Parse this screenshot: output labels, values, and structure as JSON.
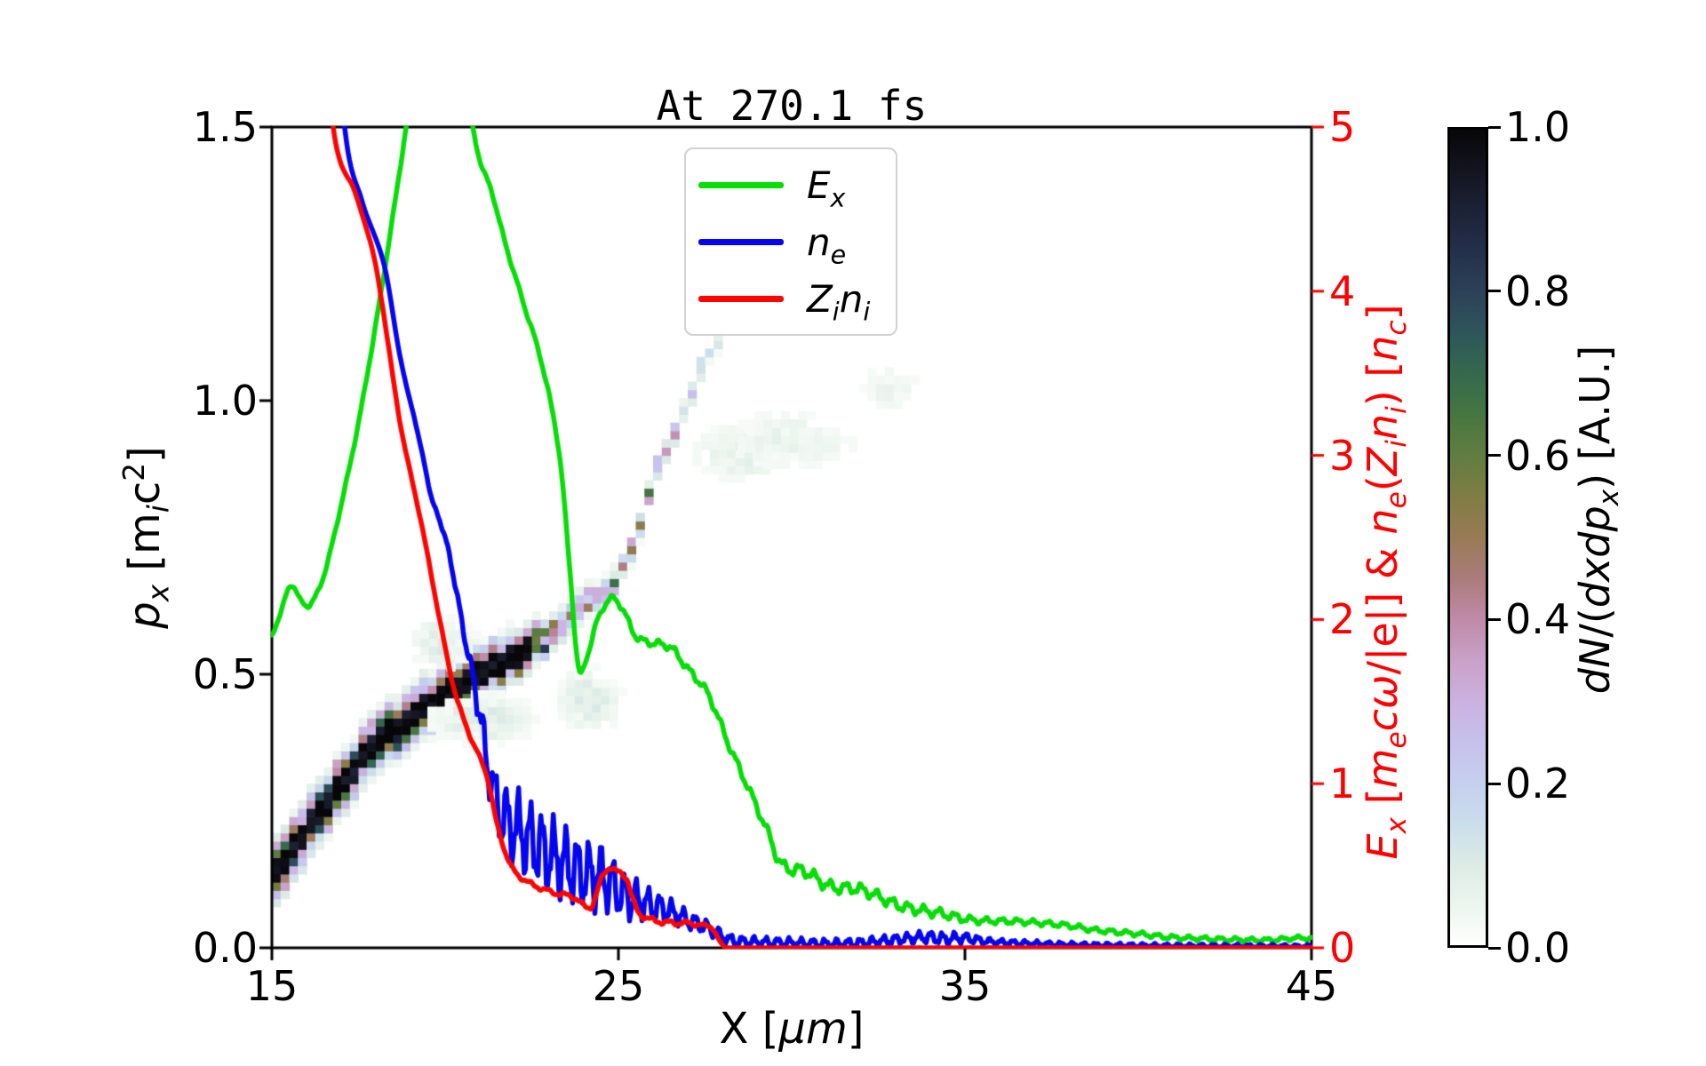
{
  "title": "At 270.1 fs",
  "colors": {
    "green": "#07dd07",
    "blue": "#0505f0",
    "red": "#fd0400",
    "right_axis": "#ff0000",
    "spine": "#000000",
    "legend_border": "#d2d2d2",
    "background": "#ffffff"
  },
  "axes": {
    "x": {
      "label": "X [*μm*]",
      "range": [
        15,
        45
      ],
      "ticks": [
        {
          "label": "15",
          "v": 15
        },
        {
          "label": "25",
          "v": 25
        },
        {
          "label": "35",
          "v": 35
        },
        {
          "label": "45",
          "v": 45
        }
      ]
    },
    "y_left": {
      "label": "*p*_{*x*} [m_{*i*}c^{2}]",
      "range": [
        0,
        1.5
      ],
      "ticks": [
        {
          "label": "0.0",
          "v": 0.0
        },
        {
          "label": "0.5",
          "v": 0.5
        },
        {
          "label": "1.0",
          "v": 1.0
        },
        {
          "label": "1.5",
          "v": 1.5
        }
      ]
    },
    "y_right": {
      "label": "*E*_{*x*} [*m*_{*e*}*c**ω*/|e|] & *n*_{*e*}(*Z*_{*i*}*n*_{*i*}) [*n*_{*c*}]",
      "range": [
        0,
        5
      ],
      "ticks": [
        {
          "label": "0",
          "v": 0
        },
        {
          "label": "1",
          "v": 1
        },
        {
          "label": "2",
          "v": 2
        },
        {
          "label": "3",
          "v": 3
        },
        {
          "label": "4",
          "v": 4
        },
        {
          "label": "5",
          "v": 5
        }
      ]
    }
  },
  "legend": {
    "entries": [
      {
        "name": "Ex",
        "label": "*E*_{*x*}",
        "color": "#07dd07"
      },
      {
        "name": "ne",
        "label": "*n*_{*e*}",
        "color": "#0505f0"
      },
      {
        "name": "Zini",
        "label": "*Z*_{*i*}*n*_{*i*}",
        "color": "#fd0400"
      }
    ]
  },
  "colorbar": {
    "label": "*dN*/(*dxdp*_{*x*}) [A.U.]",
    "range": [
      0,
      1
    ],
    "ticks": [
      {
        "label": "0.0",
        "v": 0.0
      },
      {
        "label": "0.2",
        "v": 0.2
      },
      {
        "label": "0.4",
        "v": 0.4
      },
      {
        "label": "0.6",
        "v": 0.6
      },
      {
        "label": "0.8",
        "v": 0.8
      },
      {
        "label": "1.0",
        "v": 1.0
      }
    ],
    "stops": [
      [
        0.0,
        "#ffffff"
      ],
      [
        0.05,
        "#ecf5ee"
      ],
      [
        0.1,
        "#dcebe6"
      ],
      [
        0.15,
        "#cadeec"
      ],
      [
        0.2,
        "#c6cfee"
      ],
      [
        0.25,
        "#c7c0ec"
      ],
      [
        0.3,
        "#cbb1e0"
      ],
      [
        0.35,
        "#c9a1c6"
      ],
      [
        0.4,
        "#bf8aa8"
      ],
      [
        0.45,
        "#aa7c7b"
      ],
      [
        0.5,
        "#987b55"
      ],
      [
        0.55,
        "#807d44"
      ],
      [
        0.6,
        "#617d41"
      ],
      [
        0.65,
        "#467740"
      ],
      [
        0.7,
        "#35694e"
      ],
      [
        0.75,
        "#2e565a"
      ],
      [
        0.8,
        "#2b4258"
      ],
      [
        0.85,
        "#24304b"
      ],
      [
        0.9,
        "#1c2236"
      ],
      [
        0.95,
        "#13141f"
      ],
      [
        1.0,
        "#070709"
      ]
    ]
  },
  "chart_data": {
    "type": "line+heatmap",
    "x_range": [
      15,
      45
    ],
    "y_left_range": [
      0,
      1.5
    ],
    "y_right_range": [
      0,
      5
    ],
    "series": [
      {
        "name": "Ex",
        "axis": "right",
        "color": "#07dd07",
        "points": [
          [
            15,
            1.9
          ],
          [
            15.25,
            2.04
          ],
          [
            15.55,
            2.21
          ],
          [
            15.85,
            2.11
          ],
          [
            16.1,
            2.09
          ],
          [
            16.5,
            2.27
          ],
          [
            17,
            2.7
          ],
          [
            17.5,
            3.2
          ],
          [
            18,
            3.8
          ],
          [
            18.45,
            4.4
          ],
          [
            18.7,
            4.75
          ],
          [
            19,
            5.15
          ],
          [
            19.5,
            5.5
          ],
          [
            20,
            5.55
          ],
          [
            20.5,
            5.3
          ],
          [
            20.74,
            5.05
          ],
          [
            21,
            4.8
          ],
          [
            21.35,
            4.6
          ],
          [
            21.75,
            4.28
          ],
          [
            22.3,
            3.9
          ],
          [
            22.8,
            3.55
          ],
          [
            23.3,
            3.0
          ],
          [
            23.6,
            2.3
          ],
          [
            23.85,
            1.7
          ],
          [
            24.1,
            1.78
          ],
          [
            24.4,
            2.0
          ],
          [
            24.8,
            2.13
          ],
          [
            25.1,
            2.07
          ],
          [
            25.5,
            1.9
          ],
          [
            25.9,
            1.86
          ],
          [
            26.5,
            1.83
          ],
          [
            27.0,
            1.7
          ],
          [
            27.6,
            1.54
          ],
          [
            28.2,
            1.23
          ],
          [
            28.8,
            0.95
          ],
          [
            29.3,
            0.71
          ],
          [
            29.7,
            0.51
          ],
          [
            30.4,
            0.465
          ],
          [
            31.1,
            0.375
          ],
          [
            32.0,
            0.355
          ],
          [
            33.15,
            0.255
          ],
          [
            34.3,
            0.21
          ],
          [
            35.2,
            0.17
          ],
          [
            36.6,
            0.16
          ],
          [
            38,
            0.135
          ],
          [
            38.7,
            0.11
          ],
          [
            40,
            0.085
          ],
          [
            40.9,
            0.065
          ],
          [
            42,
            0.055
          ],
          [
            42.8,
            0.05
          ],
          [
            43.8,
            0.048
          ],
          [
            44.6,
            0.06
          ],
          [
            45,
            0.058
          ]
        ],
        "noise_amp": [
          [
            15,
            0.008
          ],
          [
            24,
            0.01
          ],
          [
            26,
            0.018
          ],
          [
            29,
            0.022
          ],
          [
            30,
            0.03
          ],
          [
            34,
            0.025
          ],
          [
            36,
            0.015
          ],
          [
            45,
            0.01
          ]
        ],
        "noise_period": 0.45,
        "phase": 0.7
      },
      {
        "name": "ne",
        "axis": "right",
        "color": "#0505f0",
        "points": [
          [
            15,
            12
          ],
          [
            16.3,
            7
          ],
          [
            17.1,
            5.0
          ],
          [
            17.6,
            4.55
          ],
          [
            18.25,
            4.15
          ],
          [
            18.7,
            3.6
          ],
          [
            19.25,
            3.1
          ],
          [
            19.6,
            2.75
          ],
          [
            20.0,
            2.5
          ],
          [
            20.3,
            2.2
          ],
          [
            20.6,
            1.85
          ],
          [
            20.9,
            1.55
          ],
          [
            21.2,
            1.15
          ],
          [
            21.56,
            0.84
          ],
          [
            22.2,
            0.7
          ],
          [
            22.8,
            0.6
          ],
          [
            23.4,
            0.52
          ],
          [
            24.0,
            0.45
          ],
          [
            24.6,
            0.42
          ],
          [
            25.2,
            0.32
          ],
          [
            25.8,
            0.27
          ],
          [
            26.4,
            0.23
          ],
          [
            27.0,
            0.17
          ],
          [
            27.6,
            0.12
          ],
          [
            28.2,
            0.05
          ],
          [
            29,
            0.035
          ],
          [
            30,
            0.03
          ],
          [
            31,
            0.025
          ],
          [
            32,
            0.03
          ],
          [
            33,
            0.05
          ],
          [
            33.9,
            0.065
          ],
          [
            34.4,
            0.055
          ],
          [
            35,
            0.06
          ],
          [
            35.6,
            0.04
          ],
          [
            36.5,
            0.03
          ],
          [
            38,
            0.02
          ],
          [
            40,
            0.015
          ],
          [
            42,
            0.012
          ],
          [
            45,
            0.01
          ]
        ],
        "noise_amp": [
          [
            15,
            0
          ],
          [
            20.5,
            0.02
          ],
          [
            21.2,
            0.12
          ],
          [
            22,
            0.19
          ],
          [
            24.5,
            0.16
          ],
          [
            25.5,
            0.1
          ],
          [
            26.5,
            0.06
          ],
          [
            28,
            0.03
          ],
          [
            33,
            0.025
          ],
          [
            34.5,
            0.03
          ],
          [
            36,
            0.015
          ],
          [
            45,
            0.008
          ]
        ],
        "noise_period": 0.34,
        "phase": 1.3
      },
      {
        "name": "Zini",
        "axis": "right",
        "color": "#fd0400",
        "points": [
          [
            15,
            11
          ],
          [
            16.0,
            6.8
          ],
          [
            16.77,
            5.0
          ],
          [
            17.4,
            4.6
          ],
          [
            18.0,
            4.15
          ],
          [
            18.7,
            3.2
          ],
          [
            19.3,
            2.6
          ],
          [
            20.2,
            1.63
          ],
          [
            20.7,
            1.3
          ],
          [
            21.2,
            1.05
          ],
          [
            21.5,
            0.75
          ],
          [
            21.9,
            0.5
          ],
          [
            22.4,
            0.4
          ],
          [
            23.15,
            0.335
          ],
          [
            23.7,
            0.31
          ],
          [
            24.2,
            0.25
          ],
          [
            24.55,
            0.44
          ],
          [
            24.74,
            0.49
          ],
          [
            24.9,
            0.47
          ],
          [
            25.25,
            0.42
          ],
          [
            25.4,
            0.3
          ],
          [
            25.6,
            0.21
          ],
          [
            26.2,
            0.16
          ],
          [
            27.0,
            0.15
          ],
          [
            27.35,
            0.14
          ],
          [
            27.7,
            0.12
          ],
          [
            27.9,
            0.05
          ],
          [
            28.05,
            0.008
          ],
          [
            28.2,
            0
          ],
          [
            45,
            0
          ]
        ],
        "noise_amp": [
          [
            15,
            0
          ],
          [
            21,
            0.008
          ],
          [
            27,
            0.012
          ],
          [
            28.1,
            0
          ],
          [
            45,
            0
          ]
        ],
        "noise_period": 0.5,
        "phase": 2.1
      }
    ],
    "heatmap": {
      "units": "x in μm, p in m_i c^2, value in A.U. 0-1",
      "cell_size": [
        0.25,
        0.015
      ],
      "centerline": [
        [
          15,
          0.13
        ],
        [
          16,
          0.215
        ],
        [
          17,
          0.3
        ],
        [
          18,
          0.37
        ],
        [
          19,
          0.42
        ],
        [
          20,
          0.465
        ],
        [
          21,
          0.5
        ],
        [
          22,
          0.535
        ],
        [
          23,
          0.575
        ],
        [
          24,
          0.625
        ],
        [
          24.8,
          0.66
        ],
        [
          25.4,
          0.735
        ],
        [
          26,
          0.85
        ],
        [
          26.8,
          0.97
        ],
        [
          27.3,
          1.04
        ],
        [
          27.7,
          1.1
        ]
      ],
      "intensity": [
        [
          15,
          1.0
        ],
        [
          22.2,
          1.0
        ],
        [
          22.8,
          0.62
        ],
        [
          23.5,
          0.48
        ],
        [
          24.5,
          0.42
        ],
        [
          25.5,
          0.38
        ],
        [
          26.3,
          0.3
        ],
        [
          27.0,
          0.24
        ],
        [
          27.4,
          0.18
        ],
        [
          27.7,
          0.12
        ]
      ],
      "halfwidth_cells": [
        [
          15,
          2.3
        ],
        [
          19,
          2.1
        ],
        [
          22,
          1.8
        ],
        [
          23,
          1.4
        ],
        [
          25,
          1.1
        ],
        [
          26.5,
          1.0
        ],
        [
          27.7,
          0.9
        ]
      ],
      "x_end": 27.85,
      "blobs": [
        {
          "x": 28.4,
          "p": 0.91,
          "w": 1.3,
          "h": 0.055,
          "v": 0.07
        },
        {
          "x": 29.7,
          "p": 0.935,
          "w": 1.7,
          "h": 0.05,
          "v": 0.06
        },
        {
          "x": 30.9,
          "p": 0.92,
          "w": 0.9,
          "h": 0.045,
          "v": 0.05
        },
        {
          "x": 32.7,
          "p": 1.03,
          "w": 0.9,
          "h": 0.045,
          "v": 0.05
        },
        {
          "x": 24.0,
          "p": 0.46,
          "w": 0.9,
          "h": 0.05,
          "v": 0.1
        },
        {
          "x": 21.0,
          "p": 0.425,
          "w": 1.5,
          "h": 0.04,
          "v": 0.11
        },
        {
          "x": 19.8,
          "p": 0.565,
          "w": 0.9,
          "h": 0.04,
          "v": 0.1
        }
      ]
    }
  }
}
